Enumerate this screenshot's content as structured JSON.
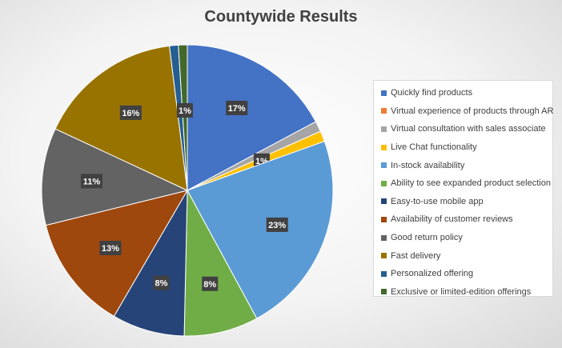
{
  "chart_data": {
    "type": "pie",
    "title": "Countywide Results",
    "legend_position": "right",
    "categories": [
      "Quickly find products",
      "Virtual experience of products through AR",
      "Virtual consultation with sales associate",
      "Live Chat functionality",
      "In-stock availability",
      "Ability to see expanded product selection",
      "Easy-to-use mobile app",
      "Availability of customer reviews",
      "Good return policy",
      "Fast delivery",
      "Personalized offering",
      "Exclusive or limited-edition offerings"
    ],
    "values": [
      17.5,
      0,
      1.2,
      1.2,
      23,
      8.4,
      8.2,
      13,
      11,
      16.4,
      1.0,
      1.0
    ],
    "labels": [
      "17%",
      "",
      "",
      "1%",
      "23%",
      "8%",
      "8%",
      "13%",
      "11%",
      "16%",
      "",
      "1%"
    ],
    "colors": [
      "#4472c4",
      "#ed7d31",
      "#a5a5a5",
      "#ffc000",
      "#5b9bd5",
      "#70ad47",
      "#264478",
      "#9e480e",
      "#636363",
      "#997300",
      "#255e91",
      "#43682b"
    ]
  }
}
